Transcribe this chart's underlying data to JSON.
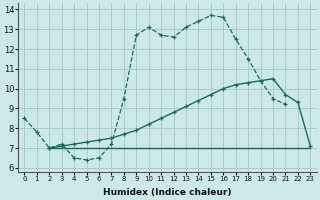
{
  "xlabel": "Humidex (Indice chaleur)",
  "bg_color": "#cce8ea",
  "grid_color": "#aaccce",
  "line_color": "#1a6b5a",
  "xlim": [
    -0.5,
    23.5
  ],
  "ylim": [
    5.8,
    14.3
  ],
  "xticks": [
    0,
    1,
    2,
    3,
    4,
    5,
    6,
    7,
    8,
    9,
    10,
    11,
    12,
    13,
    14,
    15,
    16,
    17,
    18,
    19,
    20,
    21,
    22,
    23
  ],
  "yticks": [
    6,
    7,
    8,
    9,
    10,
    11,
    12,
    13,
    14
  ],
  "line1_x": [
    0,
    1,
    2,
    3,
    4,
    5,
    6,
    7,
    8,
    9,
    10,
    11,
    12,
    13,
    14,
    15,
    16,
    17,
    18,
    19,
    20,
    21
  ],
  "line1_y": [
    8.5,
    7.8,
    7.0,
    7.2,
    6.5,
    6.4,
    6.5,
    7.2,
    9.5,
    12.7,
    13.1,
    12.7,
    12.6,
    13.1,
    13.4,
    13.7,
    13.6,
    12.5,
    11.5,
    10.4,
    9.5,
    9.2
  ],
  "line2_x": [
    2,
    23
  ],
  "line2_y": [
    7.0,
    7.0
  ],
  "line3_x": [
    2,
    3,
    4,
    5,
    6,
    7,
    8,
    9,
    10,
    11,
    12,
    13,
    14,
    15,
    16,
    17,
    18,
    19,
    20,
    21,
    22,
    23
  ],
  "line3_y": [
    7.0,
    7.1,
    7.2,
    7.3,
    7.4,
    7.5,
    7.7,
    7.9,
    8.2,
    8.5,
    8.8,
    9.1,
    9.4,
    9.7,
    10.0,
    10.2,
    10.3,
    10.4,
    10.5,
    9.7,
    9.3,
    7.1
  ]
}
